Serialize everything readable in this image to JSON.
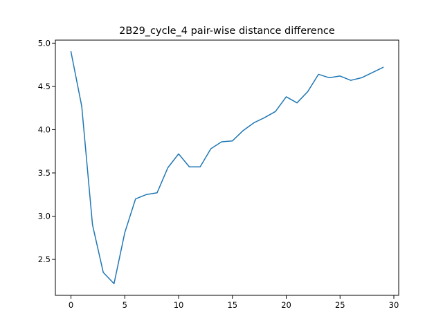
{
  "chart_data": {
    "type": "line",
    "title": "2B29_cycle_4 pair-wise distance difference",
    "xlabel": "",
    "ylabel": "",
    "xlim": [
      -1.45,
      30.45
    ],
    "ylim": [
      2.085,
      5.035
    ],
    "xticks": [
      0,
      5,
      10,
      15,
      20,
      25,
      30
    ],
    "yticks": [
      2.5,
      3.0,
      3.5,
      4.0,
      4.5,
      5.0
    ],
    "xtick_labels": [
      "0",
      "5",
      "10",
      "15",
      "20",
      "25",
      "30"
    ],
    "ytick_labels": [
      "2.5",
      "3.0",
      "3.5",
      "4.0",
      "4.5",
      "5.0"
    ],
    "grid": false,
    "line_color": "#1f77b4",
    "series": [
      {
        "x": [
          0,
          1,
          2,
          3,
          4,
          5,
          6,
          7,
          8,
          9,
          10,
          11,
          12,
          13,
          14,
          15,
          16,
          17,
          18,
          19,
          20,
          21,
          22,
          23,
          24,
          25,
          26,
          27,
          28,
          29
        ],
        "values": [
          4.9,
          4.27,
          2.9,
          2.35,
          2.22,
          2.81,
          3.2,
          3.25,
          3.27,
          3.56,
          3.72,
          3.57,
          3.57,
          3.78,
          3.86,
          3.87,
          3.99,
          4.08,
          4.14,
          4.21,
          4.38,
          4.31,
          4.44,
          4.64,
          4.6,
          4.62,
          4.57,
          4.6,
          4.66,
          4.72
        ]
      }
    ]
  }
}
